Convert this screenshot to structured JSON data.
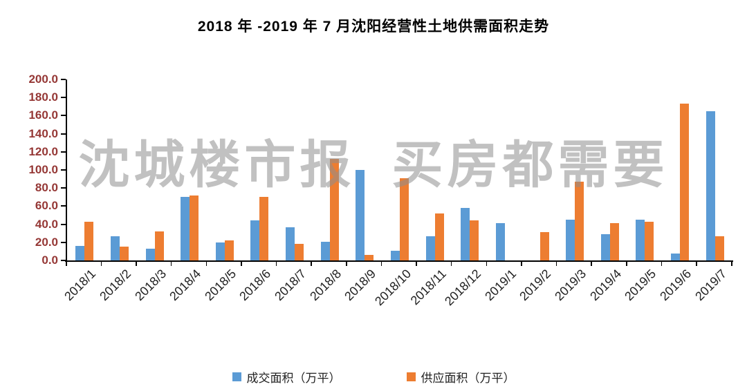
{
  "watermark": "沈城楼市报  买房都需要",
  "chart_data": {
    "type": "bar",
    "title": "2018 年 -2019 年 7 月沈阳经营性土地供需面积走势",
    "categories": [
      "2018/1",
      "2018/2",
      "2018/3",
      "2018/4",
      "2018/5",
      "2018/6",
      "2018/7",
      "2018/8",
      "2018/9",
      "2018/10",
      "2018/11",
      "2018/12",
      "2019/1",
      "2019/2",
      "2019/3",
      "2019/4",
      "2019/5",
      "2019/6",
      "2019/7"
    ],
    "series": [
      {
        "name": "成交面积（万平）",
        "color": "#5B9BD5",
        "values": [
          16,
          27,
          13,
          70,
          20,
          44,
          37,
          21,
          100,
          11,
          27,
          58,
          41,
          0,
          45,
          29,
          45,
          8,
          165
        ]
      },
      {
        "name": "供应面积（万平）",
        "color": "#ED7D31",
        "values": [
          43,
          15,
          32,
          72,
          22,
          70,
          18,
          112,
          6,
          91,
          52,
          44,
          0,
          31,
          87,
          41,
          43,
          173,
          27
        ]
      }
    ],
    "xlabel": "",
    "ylabel": "",
    "ylim": [
      0,
      200
    ],
    "ytick_step": 20,
    "ytick_labels": [
      "0.0",
      "20.0",
      "40.0",
      "60.0",
      "80.0",
      "100.0",
      "120.0",
      "140.0",
      "160.0",
      "180.0",
      "200.0"
    ],
    "grid": false,
    "legend_position": "bottom"
  }
}
